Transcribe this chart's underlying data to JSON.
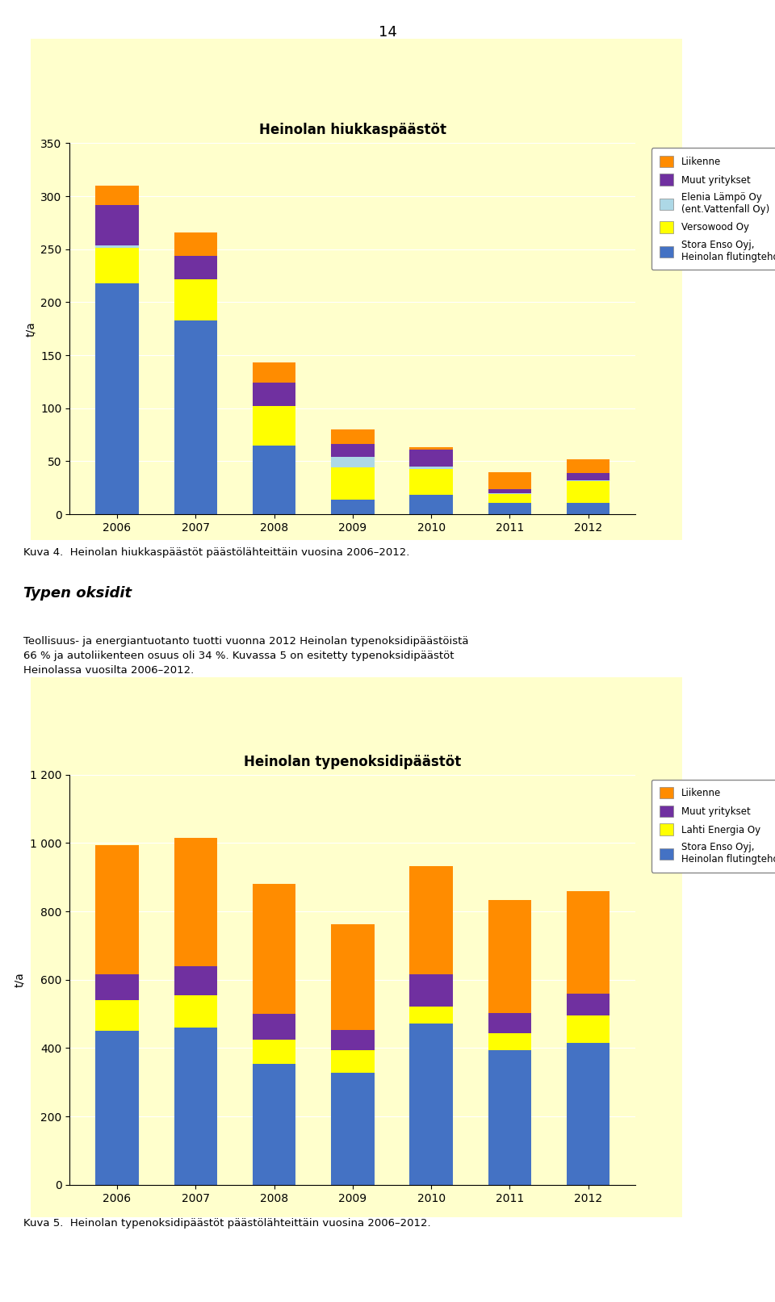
{
  "page_number": "14",
  "chart1": {
    "title": "Heinolan hiukkaspäästöt",
    "ylabel": "t/a",
    "years": [
      2006,
      2007,
      2008,
      2009,
      2010,
      2011,
      2012
    ],
    "ylim": [
      0,
      350
    ],
    "yticks": [
      0,
      50,
      100,
      150,
      200,
      250,
      300,
      350
    ],
    "series": {
      "Stora Enso Oyj,\nHeinolan flutingtehdas": {
        "color": "#4472C4",
        "values": [
          218,
          183,
          65,
          14,
          18,
          11,
          11
        ]
      },
      "Versowood Oy": {
        "color": "#FFFF00",
        "values": [
          33,
          39,
          37,
          30,
          25,
          8,
          20
        ]
      },
      "Elenia Lämpö Oy\n(ent.Vattenfall Oy)": {
        "color": "#ADD8E6",
        "values": [
          3,
          0,
          0,
          10,
          2,
          1,
          1
        ]
      },
      "Muut yritykset": {
        "color": "#7030A0",
        "values": [
          38,
          22,
          22,
          12,
          16,
          4,
          7
        ]
      },
      "Liikenne": {
        "color": "#FF8C00",
        "values": [
          18,
          22,
          19,
          14,
          2,
          16,
          13
        ]
      }
    },
    "stack_order": [
      "Stora Enso Oyj,\nHeinolan flutingtehdas",
      "Versowood Oy",
      "Elenia Lämpö Oy\n(ent.Vattenfall Oy)",
      "Muut yritykset",
      "Liikenne"
    ],
    "legend_order": [
      "Liikenne",
      "Muut yritykset",
      "Elenia Lämpö Oy\n(ent.Vattenfall Oy)",
      "Versowood Oy",
      "Stora Enso Oyj,\nHeinolan flutingtehdas"
    ],
    "bg_color": "#FFFFCC"
  },
  "caption1": "Kuva 4.  Heinolan hiukkaspäästöt päästölähteittäin vuosina 2006–2012.",
  "section_title": "Typen oksidit",
  "section_text": "Teollisuus- ja energiantuotanto tuotti vuonna 2012 Heinolan typenoksidipäästöistä\n66 % ja autoliikenteen osuus oli 34 %. Kuvassa 5 on esitetty typenoksidipäästöt\nHeinolassa vuosilta 2006–2012.",
  "chart2": {
    "title": "Heinolan typenoksidipäästöt",
    "ylabel": "t/a",
    "years": [
      2006,
      2007,
      2008,
      2009,
      2010,
      2011,
      2012
    ],
    "ylim": [
      0,
      1200
    ],
    "yticks": [
      0,
      200,
      400,
      600,
      800,
      1000,
      1200
    ],
    "series": {
      "Stora Enso Oyj,\nHeinolan flutingtehdas": {
        "color": "#4472C4",
        "values": [
          450,
          460,
          355,
          328,
          472,
          393,
          415
        ]
      },
      "Lahti Energia Oy": {
        "color": "#FFFF00",
        "values": [
          90,
          95,
          70,
          65,
          50,
          50,
          80
        ]
      },
      "Muut yritykset": {
        "color": "#7030A0",
        "values": [
          75,
          85,
          75,
          60,
          95,
          60,
          65
        ]
      },
      "Liikenne": {
        "color": "#FF8C00",
        "values": [
          380,
          375,
          380,
          310,
          315,
          330,
          300
        ]
      }
    },
    "stack_order": [
      "Stora Enso Oyj,\nHeinolan flutingtehdas",
      "Lahti Energia Oy",
      "Muut yritykset",
      "Liikenne"
    ],
    "legend_order": [
      "Liikenne",
      "Muut yritykset",
      "Lahti Energia Oy",
      "Stora Enso Oyj,\nHeinolan flutingtehdas"
    ],
    "bg_color": "#FFFFCC"
  },
  "caption2": "Kuva 5.  Heinolan typenoksidipäästöt päästölähteittäin vuosina 2006–2012.",
  "page_bg": "#FFFFFF"
}
